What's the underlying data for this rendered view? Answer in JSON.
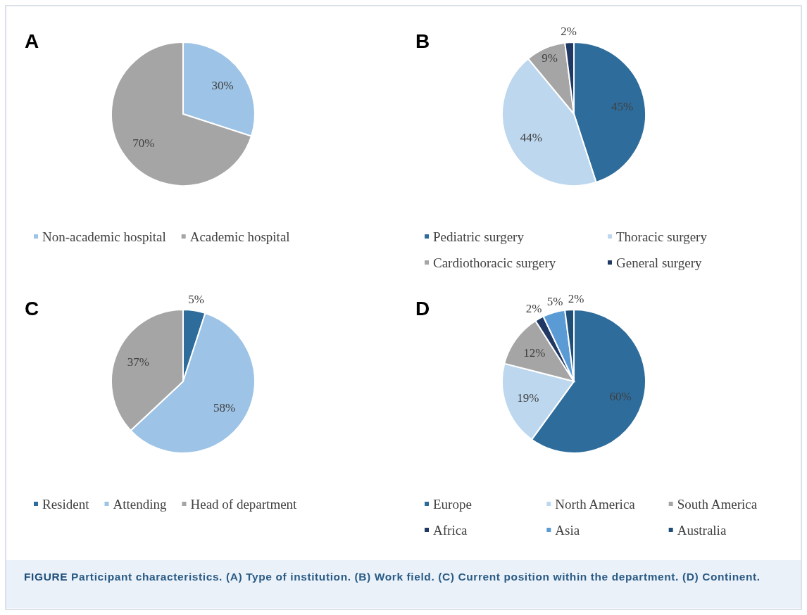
{
  "chart_data": [
    {
      "type": "pie",
      "title": "A",
      "categories": [
        "Non-academic hospital",
        "Academic hospital"
      ],
      "values": [
        30,
        70
      ],
      "value_labels": [
        "30%",
        "70%"
      ],
      "colors": [
        "#9dc3e6",
        "#a5a5a5"
      ],
      "legend": "bottom"
    },
    {
      "type": "pie",
      "title": "B",
      "categories": [
        "Pediatric surgery",
        "Thoracic surgery",
        "Cardiothoracic surgery",
        "General surgery"
      ],
      "values": [
        45,
        44,
        9,
        2
      ],
      "value_labels": [
        "45%",
        "44%",
        "9%",
        "2%"
      ],
      "colors": [
        "#2e6c9c",
        "#bdd7ee",
        "#a5a5a5",
        "#1f3864"
      ],
      "legend": "bottom"
    },
    {
      "type": "pie",
      "title": "C",
      "categories": [
        "Resident",
        "Attending",
        "Head of department"
      ],
      "values": [
        5,
        58,
        37
      ],
      "value_labels": [
        "5%",
        "58%",
        "37%"
      ],
      "colors": [
        "#2e6c9c",
        "#9dc3e6",
        "#a5a5a5"
      ],
      "legend": "bottom"
    },
    {
      "type": "pie",
      "title": "D",
      "categories": [
        "Europe",
        "North America",
        "South America",
        "Africa",
        "Asia",
        "Australia"
      ],
      "values": [
        60,
        19,
        12,
        2,
        5,
        2
      ],
      "value_labels": [
        "60%",
        "19%",
        "12%",
        "2%",
        "5%",
        "2%"
      ],
      "colors": [
        "#2e6c9c",
        "#bdd7ee",
        "#a5a5a5",
        "#1f3864",
        "#5b9bd5",
        "#1f4e79"
      ],
      "legend": "bottom",
      "annotations": [
        "FIGURE Participant characteristics. (A) Type of institution. (B) Work field. (C) Current position within the department. (D) Continent."
      ]
    }
  ]
}
